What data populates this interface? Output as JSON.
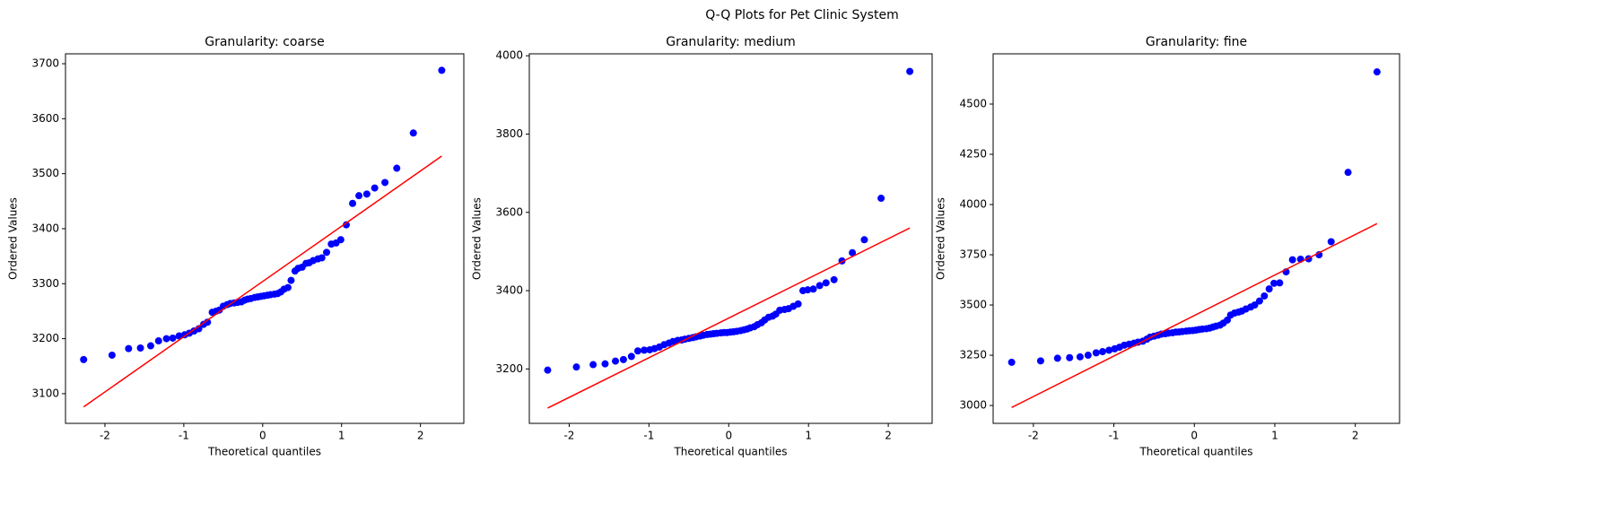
{
  "title": "Q-Q Plots for Pet Clinic System",
  "chart_data": [
    {
      "type": "scatter",
      "title": "Granularity: coarse",
      "x_label": "Theoretical quantiles",
      "y_label": "Ordered Values",
      "x": [
        -2.27,
        -1.91,
        -1.7,
        -1.55,
        -1.42,
        -1.32,
        -1.22,
        -1.14,
        -1.06,
        -0.99,
        -0.93,
        -0.87,
        -0.81,
        -0.75,
        -0.7,
        -0.64,
        -0.59,
        -0.55,
        -0.5,
        -0.45,
        -0.41,
        -0.36,
        -0.32,
        -0.27,
        -0.23,
        -0.19,
        -0.15,
        -0.1,
        -0.06,
        -0.02,
        0.02,
        0.06,
        0.1,
        0.15,
        0.19,
        0.23,
        0.27,
        0.32,
        0.36,
        0.41,
        0.45,
        0.5,
        0.55,
        0.59,
        0.64,
        0.7,
        0.75,
        0.81,
        0.87,
        0.93,
        0.99,
        1.06,
        1.14,
        1.22,
        1.32,
        1.42,
        1.55,
        1.7,
        1.91,
        2.27
      ],
      "values": [
        3162,
        3170,
        3182,
        3183,
        3187,
        3196,
        3200,
        3201,
        3205,
        3207,
        3210,
        3214,
        3218,
        3226,
        3230,
        3248,
        3250,
        3252,
        3259,
        3262,
        3264,
        3265,
        3266,
        3267,
        3270,
        3272,
        3273,
        3275,
        3276,
        3277,
        3278,
        3279,
        3280,
        3281,
        3282,
        3285,
        3290,
        3293,
        3306,
        3323,
        3328,
        3330,
        3337,
        3338,
        3342,
        3345,
        3347,
        3357,
        3372,
        3374,
        3380,
        3407,
        3446,
        3460,
        3463,
        3474,
        3484,
        3510,
        3574,
        3688
      ],
      "color": "#0000ff",
      "fit_line": {
        "x": [
          -2.27,
          2.27
        ],
        "values": [
          3076,
          3532
        ],
        "color": "#ff0000"
      },
      "xlim": [
        -2.5,
        2.55
      ],
      "ylim": [
        3046,
        3718
      ],
      "xticks": [
        -2,
        -1,
        0,
        1,
        2
      ],
      "yticks": [
        3100,
        3200,
        3300,
        3400,
        3500,
        3600,
        3700
      ]
    },
    {
      "type": "scatter",
      "title": "Granularity: medium",
      "x_label": "Theoretical quantiles",
      "y_label": "Ordered Values",
      "x": [
        -2.27,
        -1.91,
        -1.7,
        -1.55,
        -1.42,
        -1.32,
        -1.22,
        -1.14,
        -1.06,
        -0.99,
        -0.93,
        -0.87,
        -0.81,
        -0.75,
        -0.7,
        -0.64,
        -0.59,
        -0.55,
        -0.5,
        -0.45,
        -0.41,
        -0.36,
        -0.32,
        -0.27,
        -0.23,
        -0.19,
        -0.15,
        -0.1,
        -0.06,
        -0.02,
        0.02,
        0.06,
        0.1,
        0.15,
        0.19,
        0.23,
        0.27,
        0.32,
        0.36,
        0.41,
        0.45,
        0.5,
        0.55,
        0.59,
        0.64,
        0.7,
        0.75,
        0.81,
        0.87,
        0.93,
        0.99,
        1.06,
        1.14,
        1.22,
        1.32,
        1.42,
        1.55,
        1.7,
        1.91,
        2.27
      ],
      "values": [
        3197,
        3205,
        3211,
        3213,
        3220,
        3224,
        3232,
        3246,
        3248,
        3249,
        3252,
        3256,
        3262,
        3266,
        3270,
        3273,
        3274,
        3276,
        3278,
        3280,
        3282,
        3284,
        3286,
        3288,
        3289,
        3290,
        3291,
        3292,
        3293,
        3293,
        3294,
        3295,
        3296,
        3298,
        3300,
        3302,
        3305,
        3308,
        3313,
        3318,
        3325,
        3332,
        3335,
        3340,
        3350,
        3352,
        3354,
        3360,
        3366,
        3400,
        3402,
        3404,
        3413,
        3420,
        3428,
        3476,
        3497,
        3530,
        3636,
        3960
      ],
      "color": "#0000ff",
      "fit_line": {
        "x": [
          -2.27,
          2.27
        ],
        "values": [
          3100,
          3560
        ],
        "color": "#ff0000"
      },
      "xlim": [
        -2.5,
        2.55
      ],
      "ylim": [
        3061,
        4005
      ],
      "xticks": [
        -2,
        -1,
        0,
        1,
        2
      ],
      "yticks": [
        3200,
        3400,
        3600,
        3800,
        4000
      ]
    },
    {
      "type": "scatter",
      "title": "Granularity: fine",
      "x_label": "Theoretical quantiles",
      "y_label": "Ordered Values",
      "x": [
        -2.27,
        -1.91,
        -1.7,
        -1.55,
        -1.42,
        -1.32,
        -1.22,
        -1.14,
        -1.06,
        -0.99,
        -0.93,
        -0.87,
        -0.81,
        -0.75,
        -0.7,
        -0.64,
        -0.59,
        -0.55,
        -0.5,
        -0.45,
        -0.41,
        -0.36,
        -0.32,
        -0.27,
        -0.23,
        -0.19,
        -0.15,
        -0.1,
        -0.06,
        -0.02,
        0.02,
        0.06,
        0.1,
        0.15,
        0.19,
        0.23,
        0.27,
        0.32,
        0.36,
        0.41,
        0.45,
        0.5,
        0.55,
        0.59,
        0.64,
        0.7,
        0.75,
        0.81,
        0.87,
        0.93,
        0.99,
        1.06,
        1.14,
        1.22,
        1.32,
        1.42,
        1.55,
        1.7,
        1.91,
        2.27
      ],
      "values": [
        3215,
        3222,
        3235,
        3238,
        3242,
        3250,
        3262,
        3268,
        3275,
        3282,
        3290,
        3300,
        3305,
        3310,
        3315,
        3320,
        3330,
        3340,
        3345,
        3350,
        3355,
        3357,
        3360,
        3362,
        3365,
        3366,
        3368,
        3370,
        3372,
        3373,
        3375,
        3378,
        3380,
        3382,
        3385,
        3390,
        3395,
        3400,
        3410,
        3425,
        3450,
        3460,
        3465,
        3470,
        3480,
        3490,
        3500,
        3520,
        3545,
        3580,
        3608,
        3610,
        3665,
        3725,
        3728,
        3730,
        3750,
        3815,
        4160,
        4660
      ],
      "color": "#0000ff",
      "fit_line": {
        "x": [
          -2.27,
          2.27
        ],
        "values": [
          2990,
          3905
        ],
        "color": "#ff0000"
      },
      "xlim": [
        -2.5,
        2.55
      ],
      "ylim": [
        2911,
        4750
      ],
      "xticks": [
        -2,
        -1,
        0,
        1,
        2
      ],
      "yticks": [
        3000,
        3250,
        3500,
        3750,
        4000,
        4250,
        4500
      ]
    }
  ]
}
